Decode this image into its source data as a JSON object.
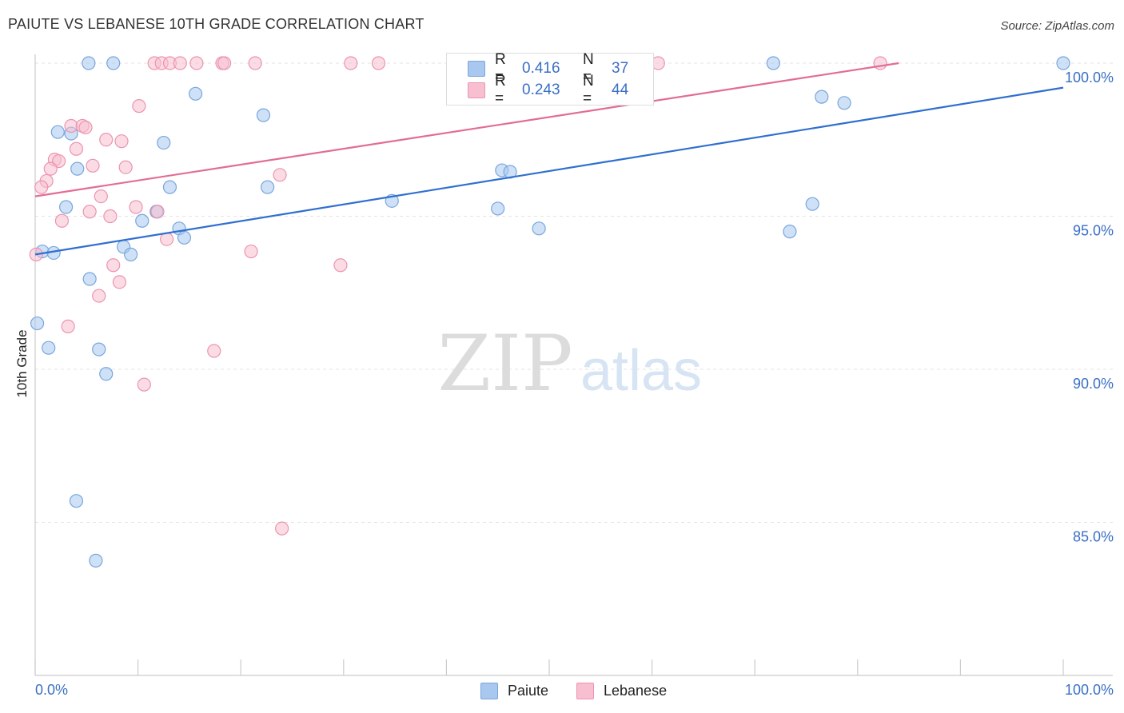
{
  "header": {
    "title": "PAIUTE VS LEBANESE 10TH GRADE CORRELATION CHART",
    "source": "Source: ZipAtlas.com"
  },
  "watermark": {
    "zip": "ZIP",
    "atlas": "atlas"
  },
  "legend_stats": [
    {
      "name": "Paiute",
      "r_label": "R =",
      "r_value": "0.416",
      "n_label": "N =",
      "n_value": "37",
      "color": "#a8c8f0",
      "stroke": "#7aa6dc"
    },
    {
      "name": "Lebanese",
      "r_label": "R =",
      "r_value": "0.243",
      "n_label": "N =",
      "n_value": "44",
      "color": "#f8bfd0",
      "stroke": "#ec94b0"
    }
  ],
  "bottom_legend": [
    {
      "label": "Paiute",
      "color": "#a8c8f0",
      "stroke": "#7aa6dc"
    },
    {
      "label": "Lebanese",
      "color": "#f8bfd0",
      "stroke": "#ec94b0"
    }
  ],
  "chart_data": {
    "type": "scatter",
    "title": "PAIUTE VS LEBANESE 10TH GRADE CORRELATION CHART",
    "xlabel": "",
    "ylabel": "10th Grade",
    "xlim": [
      0,
      100
    ],
    "ylim": [
      80.0,
      100.0
    ],
    "x_tick_labels": [
      "0.0%",
      "100.0%"
    ],
    "y_ticks": [
      85.0,
      90.0,
      95.0,
      100.0
    ],
    "y_tick_labels": [
      "85.0%",
      "90.0%",
      "95.0%",
      "100.0%"
    ],
    "series": [
      {
        "name": "Paiute",
        "color": "#a8c8f0",
        "stroke": "#7aa6dc",
        "trend_color": "#2f6fcf",
        "trend": {
          "x0": 0.0,
          "y0": 93.75,
          "x1": 100.0,
          "y1": 99.2
        },
        "points": [
          {
            "x": 5.2,
            "y": 100.0
          },
          {
            "x": 7.6,
            "y": 100.0
          },
          {
            "x": 71.8,
            "y": 100.0
          },
          {
            "x": 100.0,
            "y": 100.0
          },
          {
            "x": 15.6,
            "y": 99.0
          },
          {
            "x": 76.5,
            "y": 98.9
          },
          {
            "x": 78.7,
            "y": 98.7
          },
          {
            "x": 22.2,
            "y": 98.3
          },
          {
            "x": 2.2,
            "y": 97.75
          },
          {
            "x": 3.5,
            "y": 97.7
          },
          {
            "x": 12.5,
            "y": 97.4
          },
          {
            "x": 4.1,
            "y": 96.55
          },
          {
            "x": 45.4,
            "y": 96.5
          },
          {
            "x": 46.2,
            "y": 96.45
          },
          {
            "x": 13.1,
            "y": 95.95
          },
          {
            "x": 22.6,
            "y": 95.95
          },
          {
            "x": 3.0,
            "y": 95.3
          },
          {
            "x": 34.7,
            "y": 95.5
          },
          {
            "x": 45.0,
            "y": 95.25
          },
          {
            "x": 75.6,
            "y": 95.4
          },
          {
            "x": 11.8,
            "y": 95.15
          },
          {
            "x": 10.4,
            "y": 94.85
          },
          {
            "x": 14.0,
            "y": 94.6
          },
          {
            "x": 49.0,
            "y": 94.6
          },
          {
            "x": 73.4,
            "y": 94.5
          },
          {
            "x": 14.5,
            "y": 94.3
          },
          {
            "x": 8.6,
            "y": 94.0
          },
          {
            "x": 0.7,
            "y": 93.85
          },
          {
            "x": 1.8,
            "y": 93.8
          },
          {
            "x": 9.3,
            "y": 93.75
          },
          {
            "x": 5.3,
            "y": 92.95
          },
          {
            "x": 0.2,
            "y": 91.5
          },
          {
            "x": 1.3,
            "y": 90.7
          },
          {
            "x": 6.2,
            "y": 90.65
          },
          {
            "x": 6.9,
            "y": 89.85
          },
          {
            "x": 4.0,
            "y": 85.7
          },
          {
            "x": 5.9,
            "y": 83.75
          }
        ]
      },
      {
        "name": "Lebanese",
        "color": "#f8bfd0",
        "stroke": "#ec94b0",
        "trend_color": "#e26d94",
        "trend": {
          "x0": 0.0,
          "y0": 95.65,
          "x1": 84.0,
          "y1": 100.0
        },
        "points": [
          {
            "x": 11.6,
            "y": 100.0
          },
          {
            "x": 12.3,
            "y": 100.0
          },
          {
            "x": 13.1,
            "y": 100.0
          },
          {
            "x": 14.1,
            "y": 100.0
          },
          {
            "x": 15.7,
            "y": 100.0
          },
          {
            "x": 18.2,
            "y": 100.0
          },
          {
            "x": 18.4,
            "y": 100.0
          },
          {
            "x": 21.4,
            "y": 100.0
          },
          {
            "x": 30.7,
            "y": 100.0
          },
          {
            "x": 33.4,
            "y": 100.0
          },
          {
            "x": 60.6,
            "y": 100.0
          },
          {
            "x": 82.2,
            "y": 100.0
          },
          {
            "x": 10.1,
            "y": 98.6
          },
          {
            "x": 3.5,
            "y": 97.95
          },
          {
            "x": 4.6,
            "y": 97.95
          },
          {
            "x": 4.9,
            "y": 97.9
          },
          {
            "x": 6.9,
            "y": 97.5
          },
          {
            "x": 8.4,
            "y": 97.45
          },
          {
            "x": 4.0,
            "y": 97.2
          },
          {
            "x": 1.9,
            "y": 96.85
          },
          {
            "x": 2.3,
            "y": 96.8
          },
          {
            "x": 5.6,
            "y": 96.65
          },
          {
            "x": 1.5,
            "y": 96.55
          },
          {
            "x": 8.8,
            "y": 96.6
          },
          {
            "x": 23.8,
            "y": 96.35
          },
          {
            "x": 1.1,
            "y": 96.15
          },
          {
            "x": 0.6,
            "y": 95.95
          },
          {
            "x": 6.4,
            "y": 95.65
          },
          {
            "x": 9.8,
            "y": 95.3
          },
          {
            "x": 5.3,
            "y": 95.15
          },
          {
            "x": 7.3,
            "y": 95.0
          },
          {
            "x": 2.6,
            "y": 94.85
          },
          {
            "x": 11.9,
            "y": 95.15
          },
          {
            "x": 12.8,
            "y": 94.25
          },
          {
            "x": 21.0,
            "y": 93.85
          },
          {
            "x": 0.1,
            "y": 93.75
          },
          {
            "x": 7.6,
            "y": 93.4
          },
          {
            "x": 29.7,
            "y": 93.4
          },
          {
            "x": 8.2,
            "y": 92.85
          },
          {
            "x": 6.2,
            "y": 92.4
          },
          {
            "x": 3.2,
            "y": 91.4
          },
          {
            "x": 17.4,
            "y": 90.6
          },
          {
            "x": 10.6,
            "y": 89.5
          },
          {
            "x": 24.0,
            "y": 84.8
          }
        ]
      }
    ]
  }
}
